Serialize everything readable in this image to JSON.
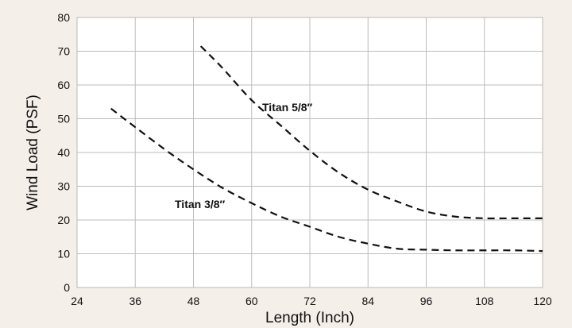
{
  "chart_data": {
    "type": "line",
    "xlabel": "Length (Inch)",
    "ylabel": "Wind Load (PSF)",
    "xlim": [
      24,
      120
    ],
    "ylim": [
      0,
      80
    ],
    "xticks": [
      24,
      36,
      48,
      60,
      72,
      84,
      96,
      108,
      120
    ],
    "yticks": [
      0,
      10,
      20,
      30,
      40,
      50,
      60,
      70,
      80
    ],
    "grid": true,
    "line_style": "dashed",
    "series": [
      {
        "name": "Titan 5/8″",
        "x": [
          49.5,
          54,
          60,
          66,
          72,
          78,
          84,
          90,
          96,
          102,
          108,
          114,
          120
        ],
        "y": [
          71.5,
          65,
          55.5,
          48,
          40.5,
          34,
          29,
          25.5,
          22.5,
          21,
          20.5,
          20.5,
          20.5
        ]
      },
      {
        "name": "Titan 3/8″",
        "x": [
          31,
          36,
          42,
          48,
          54,
          60,
          66,
          72,
          78,
          84,
          90,
          96,
          102,
          108,
          114,
          120
        ],
        "y": [
          53,
          47.5,
          41,
          35,
          29.5,
          25,
          21,
          18,
          15,
          13,
          11.5,
          11.2,
          11,
          11,
          11,
          10.8
        ]
      }
    ]
  }
}
